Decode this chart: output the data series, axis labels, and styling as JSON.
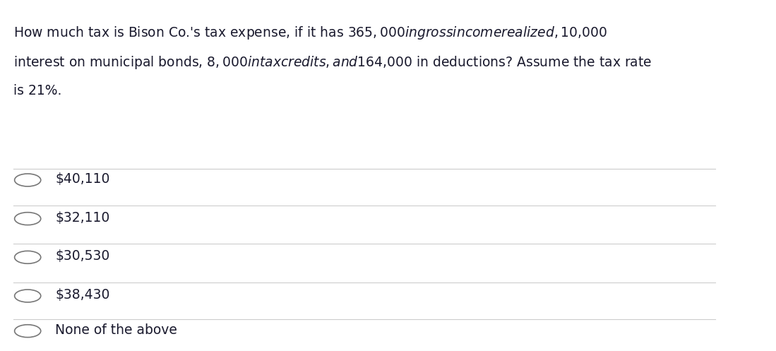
{
  "question_lines": [
    "How much tax is Bison Co.'s tax expense, if it has $365,000 in gross income realized, $10,000",
    "interest on municipal bonds, $8,000 in tax credits, and $164,000 in deductions? Assume the tax rate",
    "is 21%."
  ],
  "options": [
    "$40,110",
    "$32,110",
    "$30,530",
    "$38,430",
    "None of the above"
  ],
  "bg_color": "#ffffff",
  "text_color": "#1a1a2e",
  "line_color": "#cccccc",
  "question_fontsize": 13.5,
  "option_fontsize": 13.5,
  "circle_color": "#777777"
}
